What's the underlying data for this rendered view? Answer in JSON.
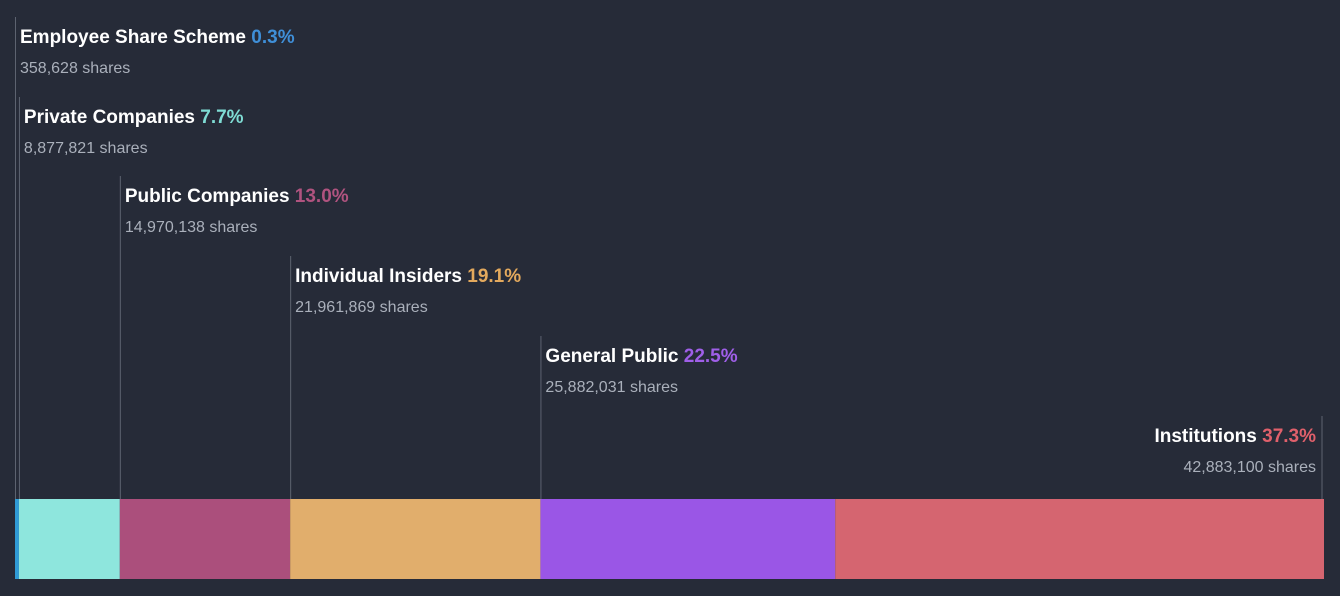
{
  "chart_data": {
    "type": "bar",
    "subtype": "stacked-horizontal-ownership",
    "series": [
      {
        "name": "Employee Share Scheme",
        "percent_label": "0.3%",
        "value": 0.3,
        "shares": "358,628 shares",
        "color": "#2f9bd6"
      },
      {
        "name": "Private Companies",
        "percent_label": "7.7%",
        "value": 7.7,
        "shares": "8,877,821 shares",
        "color": "#8ee6dd"
      },
      {
        "name": "Public Companies",
        "percent_label": "13.0%",
        "value": 13.0,
        "shares": "14,970,138 shares",
        "color": "#ab4f7c"
      },
      {
        "name": "Individual Insiders",
        "percent_label": "19.1%",
        "value": 19.1,
        "shares": "21,961,869 shares",
        "color": "#e1ae6c"
      },
      {
        "name": "General Public",
        "percent_label": "22.5%",
        "value": 22.5,
        "shares": "25,882,031 shares",
        "color": "#9a56e6"
      },
      {
        "name": "Institutions",
        "percent_label": "37.3%",
        "value": 37.3,
        "shares": "42,883,100 shares",
        "color": "#d56570"
      }
    ],
    "text_colors": {
      "Employee Share Scheme": "#3f8fd8",
      "Private Companies": "#7fdcd4",
      "Public Companies": "#b0537f",
      "Individual Insiders": "#e3a95d",
      "General Public": "#9f5fe8",
      "Institutions": "#e0606b"
    },
    "xlim": [
      0,
      100
    ],
    "background": "#262b38"
  }
}
